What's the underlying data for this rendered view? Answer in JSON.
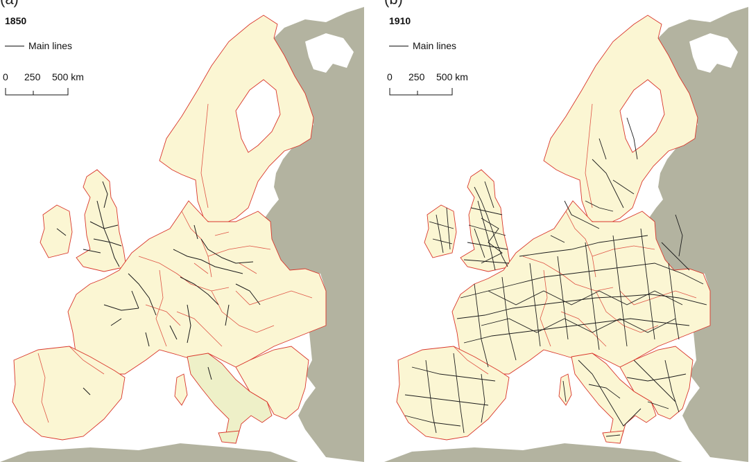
{
  "panels": [
    {
      "letter": "(a)",
      "year": "1850",
      "legend_label": "Main lines",
      "scale": {
        "zero": "0",
        "mid": "250",
        "end": "500 km"
      }
    },
    {
      "letter": "(b)",
      "year": "1910",
      "legend_label": "Main lines",
      "scale": {
        "zero": "0",
        "mid": "250",
        "end": "500 km"
      }
    }
  ],
  "colors": {
    "sea": "#ffffff",
    "land": "#fbf6d3",
    "outside": "#b3b3a0",
    "border": "#d9362b",
    "railway": "#1a1a1a"
  }
}
